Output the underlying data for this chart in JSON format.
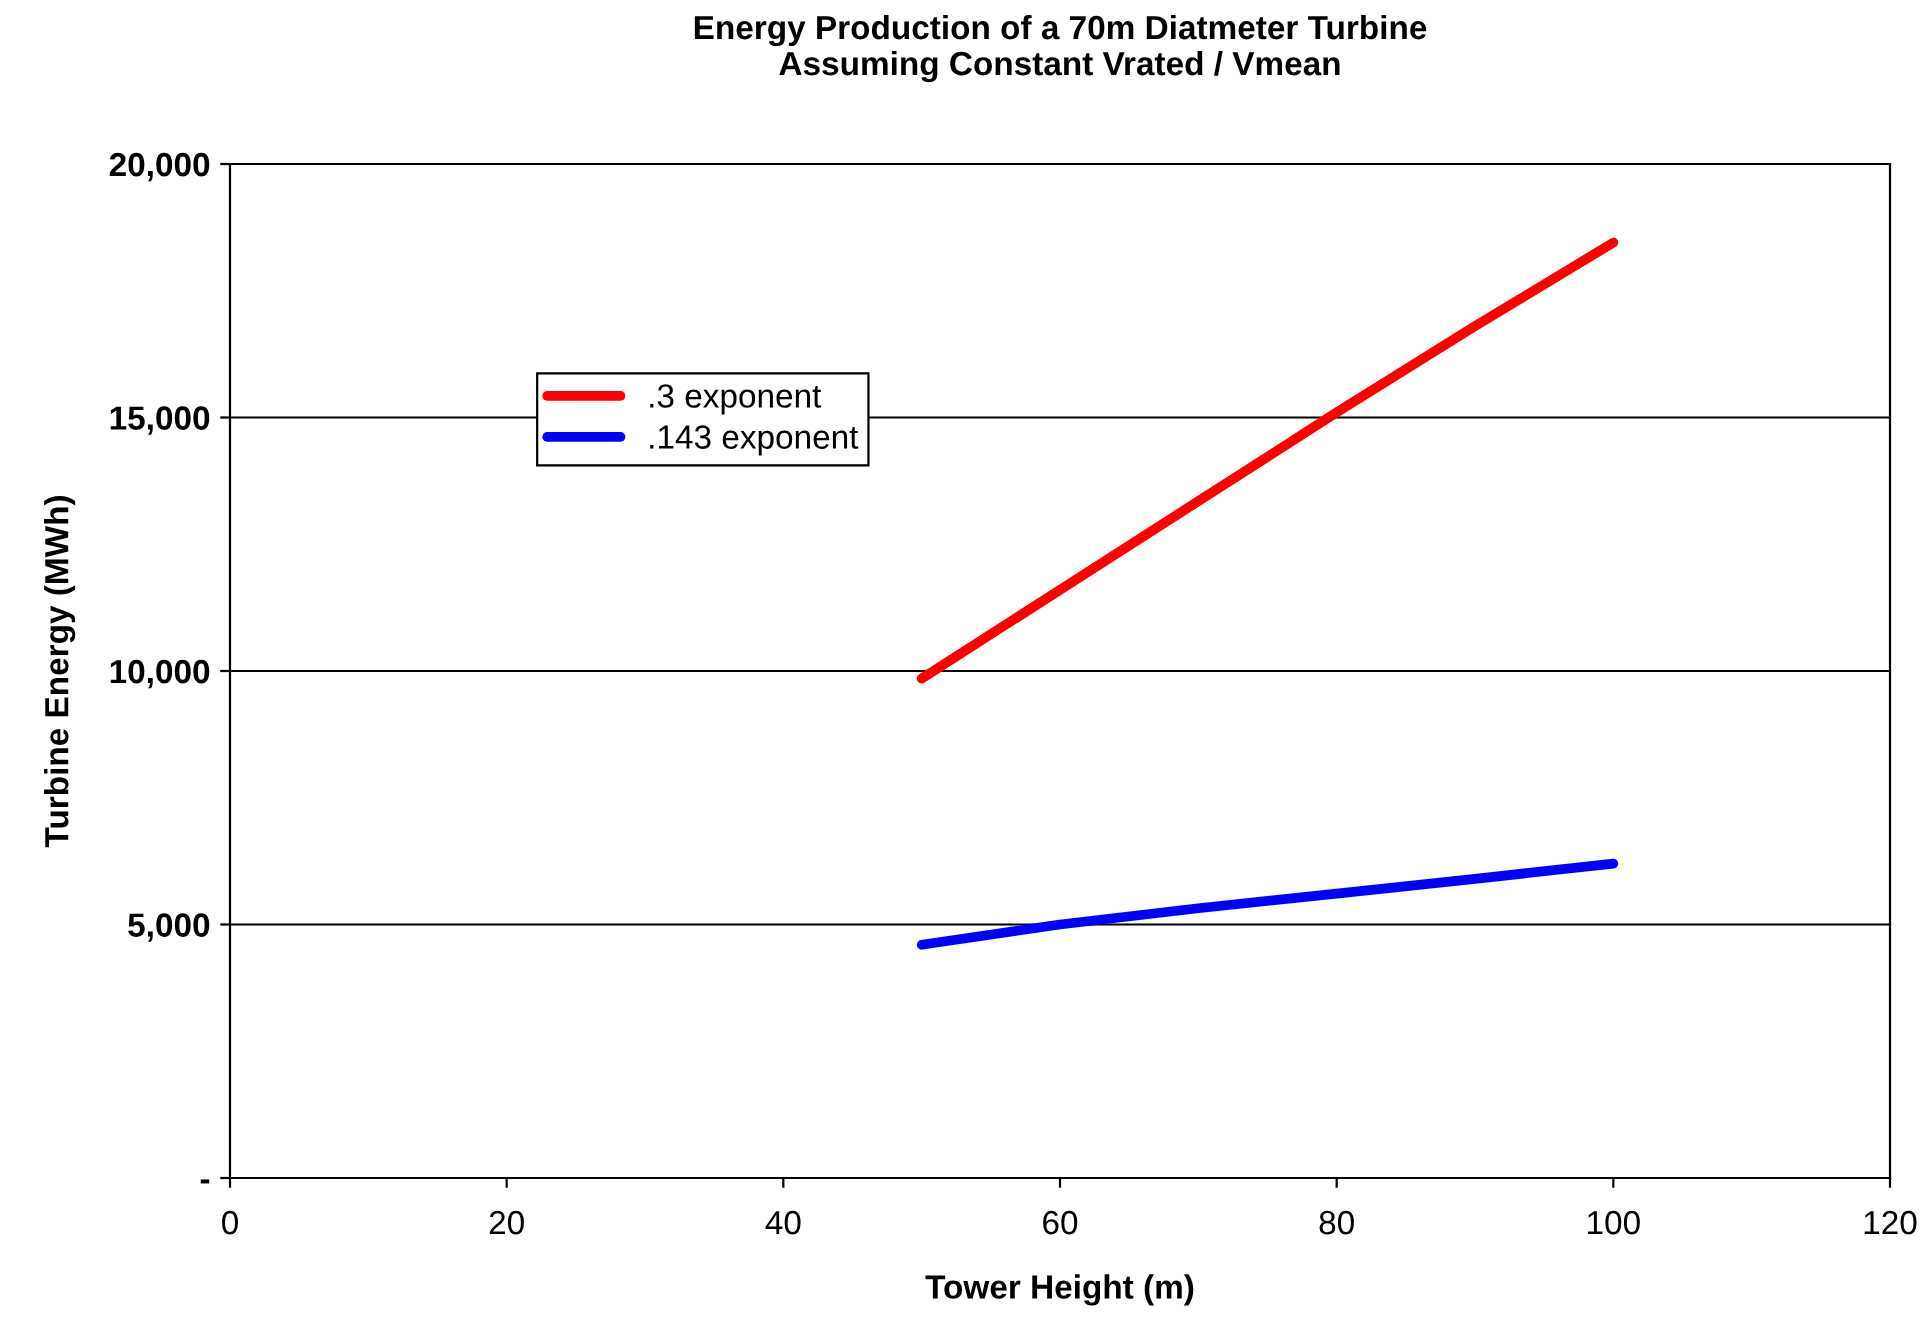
{
  "chart_data": {
    "type": "line",
    "title": "Energy Production of a 70m Diatmeter Turbine\nAssuming Constant Vrated / Vmean",
    "xlabel": "Tower Height (m)",
    "ylabel": "Turbine Energy (MWh)",
    "x": [
      50,
      60,
      70,
      80,
      90,
      100
    ],
    "series": [
      {
        "name": ".3 exponent",
        "color": "#ff0000",
        "values": [
          9850,
          11600,
          13350,
          15100,
          16800,
          18450
        ]
      },
      {
        "name": ".143 exponent",
        "color": "#0000ff",
        "values": [
          4600,
          5000,
          5320,
          5610,
          5900,
          6200
        ]
      }
    ],
    "xlim": [
      0,
      120
    ],
    "xticks": [
      0,
      20,
      40,
      60,
      80,
      100,
      120
    ],
    "ylim": [
      0,
      20000
    ],
    "yticks": [
      {
        "value": 0,
        "label": "-"
      },
      {
        "value": 5000,
        "label": "5,000"
      },
      {
        "value": 10000,
        "label": "10,000"
      },
      {
        "value": 15000,
        "label": "15,000"
      },
      {
        "value": 20000,
        "label": "20,000"
      }
    ],
    "grid": "y",
    "legend": "top left",
    "marker": "none",
    "line_style": "solid"
  }
}
